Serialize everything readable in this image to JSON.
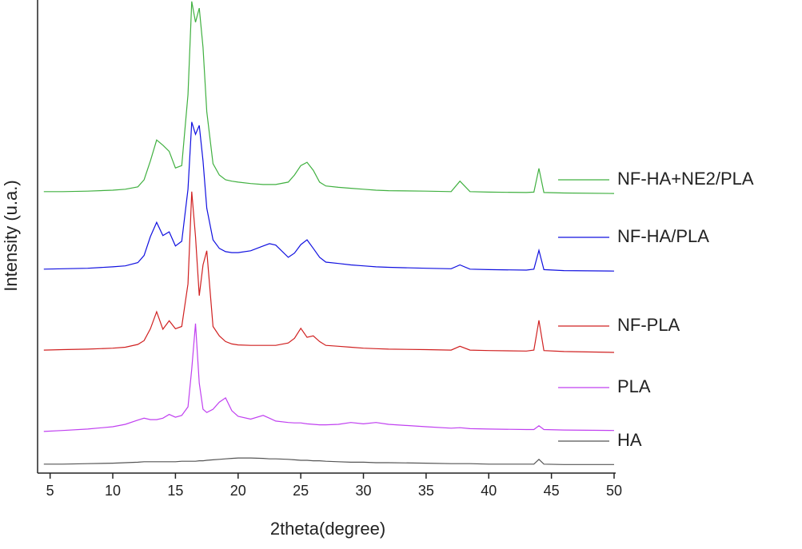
{
  "chart_data": {
    "type": "line",
    "xlabel": "2theta(degree)",
    "ylabel": "Intensity (u.a.)",
    "xlim": [
      4,
      50
    ],
    "xticks": [
      5,
      10,
      15,
      20,
      25,
      30,
      35,
      40,
      45,
      50
    ],
    "ylim": [
      0,
      100
    ],
    "x": [
      4.5,
      6,
      8,
      10,
      11,
      12,
      12.5,
      13,
      13.5,
      14,
      14.5,
      15,
      15.5,
      16,
      16.3,
      16.6,
      16.9,
      17.2,
      17.5,
      18,
      18.5,
      19,
      19.5,
      20,
      21,
      22,
      22.5,
      23,
      24,
      24.5,
      25,
      25.5,
      26,
      26.5,
      27,
      28,
      29,
      30,
      31,
      32,
      35,
      37,
      37.7,
      38.5,
      40,
      43,
      43.6,
      44,
      44.4,
      46,
      50
    ],
    "series": [
      {
        "name": "HA",
        "color": "#555555",
        "values": [
          1.9,
          1.9,
          2.0,
          2.1,
          2.2,
          2.3,
          2.4,
          2.4,
          2.4,
          2.4,
          2.4,
          2.4,
          2.5,
          2.5,
          2.5,
          2.5,
          2.6,
          2.6,
          2.7,
          2.8,
          2.9,
          3.0,
          3.1,
          3.2,
          3.2,
          3.1,
          3.0,
          3.0,
          2.9,
          2.8,
          2.7,
          2.7,
          2.6,
          2.6,
          2.5,
          2.4,
          2.3,
          2.3,
          2.2,
          2.2,
          2.1,
          2.0,
          2.0,
          2.0,
          1.9,
          1.9,
          1.9,
          2.9,
          1.9,
          1.8,
          1.8
        ]
      },
      {
        "name": "PLA",
        "color": "#c040f0",
        "values": [
          8.8,
          9.0,
          9.3,
          9.8,
          10.3,
          11.2,
          11.6,
          11.3,
          11.3,
          11.6,
          12.4,
          11.8,
          12.2,
          14,
          22,
          31.6,
          19,
          13.5,
          12.8,
          13.5,
          15,
          15.9,
          13.2,
          12,
          11.4,
          12.2,
          11.6,
          11.0,
          10.7,
          10.6,
          10.6,
          10.4,
          10.3,
          10.2,
          10.2,
          10.3,
          10.7,
          10.4,
          10.7,
          10.3,
          9.8,
          9.5,
          9.6,
          9.4,
          9.3,
          9.2,
          9.2,
          10,
          9.2,
          9.1,
          9.0
        ]
      },
      {
        "name": "NF-PLA",
        "color": "#d02020",
        "values": [
          26,
          26.1,
          26.2,
          26.4,
          26.6,
          27.2,
          28,
          30.5,
          34.1,
          30.4,
          32.2,
          30.5,
          31,
          40,
          59.5,
          50,
          37.5,
          44,
          47,
          31,
          29,
          27.8,
          27.3,
          27.1,
          27,
          27,
          27,
          27,
          27.5,
          28.5,
          30.6,
          28.7,
          29,
          27.8,
          27,
          26.8,
          26.6,
          26.4,
          26.3,
          26.2,
          26.1,
          26,
          26.8,
          26,
          25.9,
          25.8,
          26,
          32.3,
          25.9,
          25.7,
          25.5
        ]
      },
      {
        "name": "NF-HA/PLA",
        "color": "#1010e0",
        "values": [
          43.1,
          43.2,
          43.3,
          43.6,
          43.8,
          44.5,
          46,
          50,
          53,
          50.2,
          51,
          48,
          49,
          60,
          74.2,
          71.6,
          73.5,
          66,
          56,
          49.3,
          47.5,
          46.8,
          46.6,
          46.6,
          47,
          48,
          48.5,
          48.2,
          45.6,
          46.5,
          48.3,
          49.3,
          47.5,
          45.6,
          44.6,
          44.3,
          44,
          43.8,
          43.6,
          43.5,
          43.3,
          43.2,
          44,
          43.1,
          43,
          42.9,
          43.1,
          47.1,
          43,
          42.8,
          42.7
        ]
      },
      {
        "name": "NF-HA+NE2/PLA",
        "color": "#40b040",
        "values": [
          59.5,
          59.5,
          59.6,
          59.8,
          60,
          60.5,
          62,
          66,
          70.4,
          69.3,
          68,
          64.5,
          65,
          80,
          99.7,
          95.3,
          98.3,
          90,
          76.4,
          65.4,
          63,
          62,
          61.7,
          61.5,
          61.2,
          61,
          61,
          61,
          61.5,
          63,
          65,
          65.7,
          64,
          61.5,
          60.7,
          60.4,
          60.2,
          60,
          59.8,
          59.7,
          59.6,
          59.5,
          61.7,
          59.5,
          59.4,
          59.3,
          59.4,
          64.4,
          59.3,
          59.2,
          59.1
        ]
      }
    ]
  }
}
